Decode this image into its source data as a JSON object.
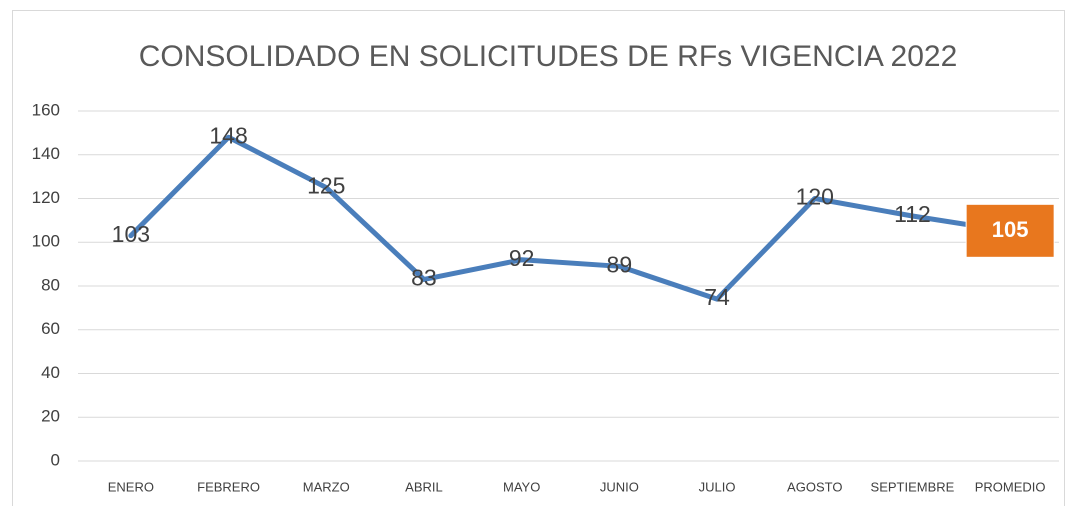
{
  "chart_data": {
    "type": "line",
    "title": "CONSOLIDADO EN SOLICITUDES DE RFs VIGENCIA 2022",
    "categories": [
      "ENERO",
      "FEBRERO",
      "MARZO",
      "ABRIL",
      "MAYO",
      "JUNIO",
      "JULIO",
      "AGOSTO",
      "SEPTIEMBRE",
      "PROMEDIO"
    ],
    "values": [
      103,
      148,
      125,
      83,
      92,
      89,
      74,
      120,
      112,
      105
    ],
    "color": "#4a7ebb",
    "highlight_color": "#e8771e",
    "ylim": [
      0,
      160
    ],
    "yticks": [
      0,
      20,
      40,
      60,
      80,
      100,
      120,
      140,
      160
    ],
    "grid": true
  }
}
